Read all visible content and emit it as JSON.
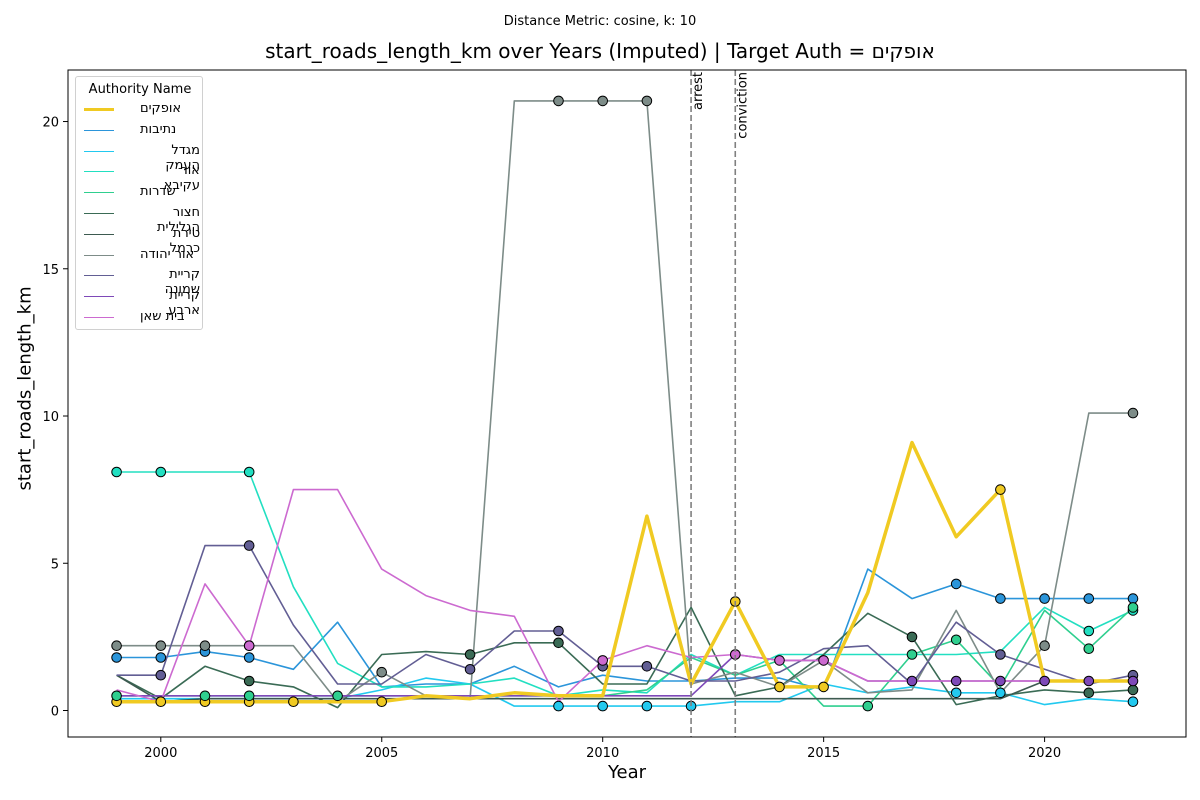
{
  "suptitle": "Distance Metric: cosine, k: 10",
  "colors": {
    "axes": "#000000",
    "vline": "#808080",
    "marker_edge": "#000000"
  },
  "chart_data": {
    "type": "line",
    "title": "start_roads_length_km over Years (Imputed) | Target Auth = אופקים",
    "xlabel": "Year",
    "ylabel": "start_roads_length_km",
    "xlim": [
      1997.9,
      2023.2
    ],
    "ylim": [
      -0.9,
      21.75
    ],
    "x_ticks": [
      2000,
      2005,
      2010,
      2015,
      2020
    ],
    "y_ticks": [
      0,
      5,
      10,
      15,
      20
    ],
    "grid": false,
    "legend": {
      "title": "Authority Name",
      "placement": "top-left"
    },
    "x": [
      1999,
      2000,
      2001,
      2002,
      2003,
      2004,
      2005,
      2006,
      2007,
      2008,
      2009,
      2010,
      2011,
      2012,
      2013,
      2014,
      2015,
      2016,
      2017,
      2018,
      2019,
      2020,
      2021,
      2022
    ],
    "vlines": [
      {
        "x": 2012,
        "label": "arrest"
      },
      {
        "x": 2013,
        "label": "conviction"
      }
    ],
    "series": [
      {
        "name": "אופקים",
        "color": "#f0ca22",
        "target": true,
        "values": [
          0.3,
          0.3,
          0.3,
          0.3,
          0.3,
          0.3,
          0.3,
          0.5,
          0.4,
          0.6,
          0.5,
          0.5,
          6.6,
          0.9,
          3.7,
          0.8,
          0.8,
          4.0,
          9.1,
          5.9,
          7.5,
          1.0,
          1.0,
          1.0
        ],
        "imputed": [
          1999,
          2000,
          2001,
          2002,
          2003,
          2005,
          2013,
          2014,
          2015,
          2019
        ]
      },
      {
        "name": "נתיבות",
        "color": "#2b95da",
        "values": [
          1.8,
          1.8,
          2.0,
          1.8,
          1.4,
          3.0,
          0.8,
          0.9,
          0.9,
          1.5,
          0.8,
          1.2,
          1.0,
          1.0,
          1.1,
          1.1,
          0.7,
          4.8,
          3.8,
          4.3,
          3.8,
          3.8,
          3.8,
          3.8
        ],
        "imputed": [
          1999,
          2000,
          2001,
          2002,
          2018,
          2019,
          2020,
          2021,
          2022
        ]
      },
      {
        "name": "מגדל העמק",
        "color": "#22c9ef",
        "values": [
          0.4,
          0.4,
          0.4,
          0.4,
          0.4,
          0.4,
          0.7,
          1.1,
          0.9,
          0.15,
          0.15,
          0.15,
          0.15,
          0.15,
          0.3,
          0.3,
          0.9,
          0.6,
          0.8,
          0.6,
          0.6,
          0.2,
          0.4,
          0.3
        ],
        "imputed": [
          2009,
          2010,
          2011,
          2012,
          2018,
          2019,
          2022
        ]
      },
      {
        "name": "אור עקיבא",
        "color": "#22dfc1",
        "values": [
          8.1,
          8.1,
          8.1,
          8.1,
          4.2,
          1.6,
          0.8,
          0.8,
          0.9,
          1.1,
          0.5,
          0.7,
          0.6,
          1.9,
          1.2,
          1.9,
          1.9,
          1.9,
          1.9,
          1.9,
          2.0,
          3.5,
          2.7,
          3.4
        ],
        "imputed": [
          1999,
          2000,
          2002,
          2021,
          2022
        ]
      },
      {
        "name": "שדרות",
        "color": "#2fcf8f",
        "values": [
          0.5,
          0.5,
          0.5,
          0.5,
          0.5,
          0.5,
          0.5,
          0.5,
          0.5,
          0.5,
          0.5,
          0.5,
          0.7,
          1.8,
          1.2,
          1.7,
          0.15,
          0.15,
          1.9,
          2.4,
          0.8,
          3.4,
          2.1,
          3.5
        ],
        "imputed": [
          1999,
          2001,
          2002,
          2004,
          2016,
          2017,
          2018,
          2021,
          2022
        ]
      },
      {
        "name": "חצור הגלילית",
        "color": "#3a6b55",
        "values": [
          1.2,
          0.4,
          1.5,
          1.0,
          0.8,
          0.1,
          1.9,
          2.0,
          1.9,
          2.3,
          2.3,
          0.9,
          0.9,
          3.5,
          0.5,
          0.8,
          1.9,
          3.3,
          2.5,
          0.2,
          0.5,
          0.7,
          0.6,
          0.7
        ],
        "imputed": [
          2002,
          2007,
          2009,
          2017,
          2021,
          2022
        ]
      },
      {
        "name": "טירת כרמל",
        "color": "#3d5a50",
        "values": [
          1.2,
          0.3,
          0.4,
          0.4,
          0.4,
          0.4,
          0.4,
          0.4,
          0.4,
          0.4,
          0.4,
          0.4,
          0.4,
          0.4,
          0.4,
          0.4,
          0.4,
          0.4,
          0.4,
          0.4,
          0.4,
          1.0,
          1.0,
          1.0
        ],
        "imputed": []
      },
      {
        "name": "אור יהודה",
        "color": "#7d8c88",
        "values": [
          2.2,
          2.2,
          2.2,
          2.2,
          2.2,
          0.3,
          1.3,
          0.5,
          0.4,
          20.7,
          20.7,
          20.7,
          20.7,
          0.9,
          1.3,
          0.8,
          1.7,
          0.6,
          0.7,
          3.4,
          0.6,
          2.2,
          10.1,
          10.1
        ],
        "imputed": [
          1999,
          2000,
          2001,
          2002,
          2005,
          2009,
          2010,
          2011,
          2020,
          2022
        ]
      },
      {
        "name": "קריית שמונה",
        "color": "#625e94",
        "values": [
          1.2,
          1.2,
          5.6,
          5.6,
          2.9,
          0.9,
          0.9,
          1.9,
          1.4,
          2.7,
          2.7,
          1.5,
          1.5,
          1.0,
          1.0,
          1.3,
          2.1,
          2.2,
          0.9,
          3.0,
          1.9,
          1.4,
          0.9,
          1.2
        ],
        "imputed": [
          2000,
          2002,
          2007,
          2009,
          2010,
          2011,
          2019,
          2022
        ]
      },
      {
        "name": "קריית ארבע",
        "color": "#7e49b8",
        "values": [
          0.5,
          0.5,
          0.5,
          0.5,
          0.5,
          0.5,
          0.5,
          0.5,
          0.5,
          0.5,
          0.5,
          0.5,
          0.5,
          0.5,
          1.9,
          1.7,
          1.7,
          1.0,
          1.0,
          1.0,
          1.0,
          1.0,
          1.0,
          1.0
        ],
        "imputed": [
          2013,
          2017,
          2018,
          2019,
          2020,
          2021,
          2022
        ]
      },
      {
        "name": "בית שאן",
        "color": "#cc6ad0",
        "values": [
          0.7,
          0.3,
          4.3,
          2.2,
          7.5,
          7.5,
          4.8,
          3.9,
          3.4,
          3.2,
          0.3,
          1.7,
          2.2,
          1.8,
          1.9,
          1.7,
          1.7,
          1.0,
          1.0,
          1.0,
          1.0,
          1.0,
          1.0,
          1.0
        ],
        "imputed": [
          2002,
          2010,
          2013,
          2014,
          2015
        ]
      }
    ]
  }
}
